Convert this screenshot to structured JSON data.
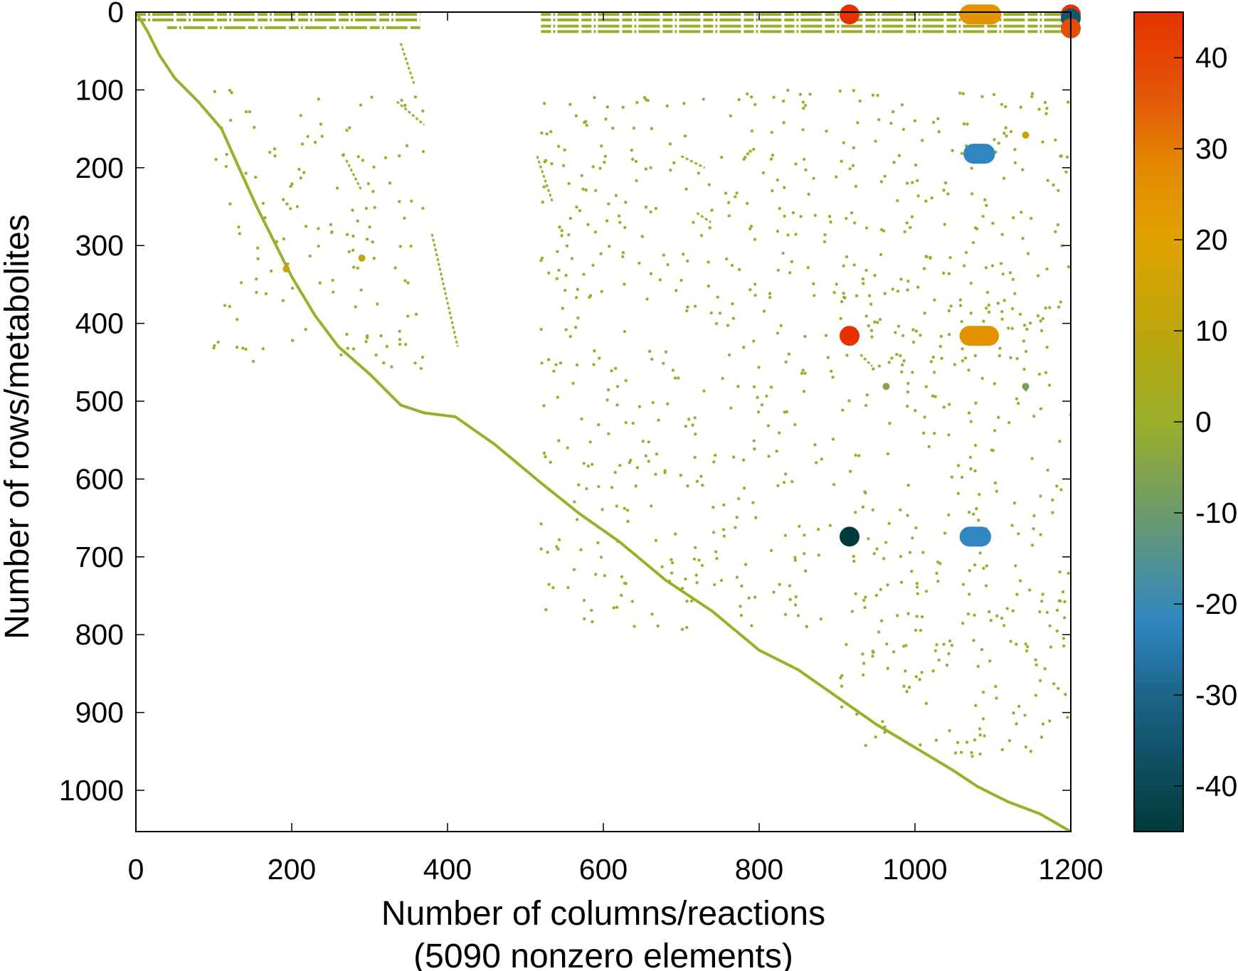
{
  "chart_data": {
    "type": "scatter",
    "title": "",
    "xlabel": "Number of columns/reactions",
    "xlabel_sub": "(5090 nonzero elements)",
    "ylabel": "Number of rows/metabolites",
    "xlim": [
      0,
      1200
    ],
    "ylim": [
      0,
      1053
    ],
    "y_inverted": true,
    "x_ticks": [
      0,
      200,
      400,
      600,
      800,
      1000,
      1200
    ],
    "y_ticks": [
      0,
      100,
      200,
      300,
      400,
      500,
      600,
      700,
      800,
      900,
      1000
    ],
    "colorbar": {
      "range": [
        -45,
        45
      ],
      "ticks": [
        40,
        30,
        20,
        10,
        0,
        -10,
        -20,
        -30,
        -40
      ],
      "stops": [
        {
          "v": 45,
          "c": "#e63200"
        },
        {
          "v": 35,
          "c": "#e25a08"
        },
        {
          "v": 28,
          "c": "#e48a00"
        },
        {
          "v": 20,
          "c": "#e0a200"
        },
        {
          "v": 10,
          "c": "#bca60c"
        },
        {
          "v": 0,
          "c": "#9cae2a"
        },
        {
          "v": -10,
          "c": "#6c9a6a"
        },
        {
          "v": -17,
          "c": "#4890a0"
        },
        {
          "v": -22,
          "c": "#2f86c0"
        },
        {
          "v": -30,
          "c": "#1c6488"
        },
        {
          "v": -45,
          "c": "#003a3a"
        }
      ]
    },
    "nonzero_count": 5090,
    "diagonal_main": [
      [
        0,
        0
      ],
      [
        15,
        25
      ],
      [
        30,
        55
      ],
      [
        50,
        85
      ],
      [
        80,
        115
      ],
      [
        110,
        150
      ],
      [
        130,
        195
      ],
      [
        155,
        250
      ],
      [
        180,
        300
      ],
      [
        200,
        340
      ],
      [
        230,
        390
      ],
      [
        260,
        430
      ],
      [
        300,
        465
      ],
      [
        340,
        505
      ],
      [
        370,
        515
      ],
      [
        410,
        520
      ],
      [
        460,
        555
      ],
      [
        520,
        605
      ],
      [
        570,
        645
      ],
      [
        620,
        680
      ],
      [
        680,
        730
      ],
      [
        740,
        770
      ],
      [
        800,
        820
      ],
      [
        850,
        845
      ],
      [
        900,
        880
      ],
      [
        950,
        915
      ],
      [
        1000,
        945
      ],
      [
        1050,
        975
      ],
      [
        1080,
        995
      ],
      [
        1120,
        1015
      ],
      [
        1160,
        1030
      ],
      [
        1200,
        1053
      ]
    ],
    "diagonal_secondary": [
      [
        [
          340,
          40
        ],
        [
          357,
          92
        ]
      ],
      [
        [
          335,
          115
        ],
        [
          370,
          145
        ]
      ],
      [
        [
          270,
          190
        ],
        [
          290,
          230
        ]
      ],
      [
        [
          380,
          285
        ],
        [
          413,
          430
        ]
      ],
      [
        [
          515,
          185
        ],
        [
          535,
          245
        ]
      ],
      [
        [
          720,
          258
        ],
        [
          738,
          270
        ]
      ],
      [
        [
          930,
          440
        ],
        [
          945,
          455
        ]
      ],
      [
        [
          700,
          185
        ],
        [
          730,
          200
        ]
      ]
    ],
    "dense_rows": [
      {
        "y": 3,
        "x": [
          0,
          365
        ]
      },
      {
        "y": 10,
        "x": [
          0,
          365
        ]
      },
      {
        "y": 20,
        "x": [
          40,
          365
        ]
      },
      {
        "y": 3,
        "x": [
          520,
          1200
        ]
      },
      {
        "y": 10,
        "x": [
          520,
          1200
        ]
      },
      {
        "y": 18,
        "x": [
          520,
          1200
        ]
      },
      {
        "y": 25,
        "x": [
          520,
          1200
        ]
      }
    ],
    "highlight_points": [
      {
        "x": 916,
        "y": 3,
        "v": 45
      },
      {
        "x": 1200,
        "y": 3,
        "v": 45
      },
      {
        "x": 1200,
        "y": 8,
        "v": -35
      },
      {
        "x": 1200,
        "y": 21,
        "v": 38
      },
      {
        "x": 1070,
        "y": 3,
        "v": 25,
        "x2": 1098
      },
      {
        "x": 1075,
        "y": 182,
        "v": -22,
        "x2": 1090
      },
      {
        "x": 916,
        "y": 416,
        "v": 45
      },
      {
        "x": 1070,
        "y": 416,
        "v": 25,
        "x2": 1095
      },
      {
        "x": 916,
        "y": 674,
        "v": -45
      },
      {
        "x": 1070,
        "y": 674,
        "v": -22,
        "x2": 1085
      },
      {
        "x": 193,
        "y": 330,
        "v": 12,
        "small": true
      },
      {
        "x": 290,
        "y": 316,
        "v": 12,
        "small": true
      },
      {
        "x": 1142,
        "y": 158,
        "v": 14,
        "small": true
      },
      {
        "x": 963,
        "y": 481,
        "v": -5,
        "small": true
      },
      {
        "x": 1142,
        "y": 481,
        "v": -8,
        "small": true
      }
    ],
    "scatter_clusters": [
      {
        "x": [
          100,
          370
        ],
        "y": [
          100,
          460
        ],
        "n": 140
      },
      {
        "x": [
          520,
          1200
        ],
        "y": [
          100,
          520
        ],
        "n": 520
      },
      {
        "x": [
          520,
          1200
        ],
        "y": [
          520,
          800
        ],
        "n": 300
      },
      {
        "x": [
          900,
          1200
        ],
        "y": [
          800,
          960
        ],
        "n": 90
      }
    ]
  }
}
